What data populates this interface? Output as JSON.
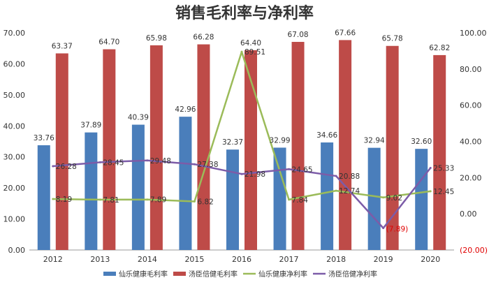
{
  "chart_data": {
    "type": "bar",
    "title": "销售毛利率与净利率",
    "categories": [
      "2012",
      "2013",
      "2014",
      "2015",
      "2016",
      "2017",
      "2018",
      "2019",
      "2020"
    ],
    "left_axis": {
      "min": 0,
      "max": 70,
      "step": 10,
      "ticks": [
        "0.00",
        "10.00",
        "20.00",
        "30.00",
        "40.00",
        "50.00",
        "60.00",
        "70.00"
      ]
    },
    "right_axis": {
      "min": -20,
      "max": 100,
      "step": 20,
      "ticks": [
        "(20.00)",
        "0.00",
        "20.00",
        "40.00",
        "60.00",
        "80.00",
        "100.00"
      ]
    },
    "bar_series": [
      {
        "name": "仙乐健康毛利率",
        "color": "#4a7ebb",
        "axis": "left",
        "values": [
          33.76,
          37.89,
          40.39,
          42.96,
          32.37,
          32.99,
          34.66,
          32.94,
          32.6
        ],
        "labels": [
          "33.76",
          "37.89",
          "40.39",
          "42.96",
          "32.37",
          "32.99",
          "34.66",
          "32.94",
          "32.60"
        ]
      },
      {
        "name": "汤臣倍健毛利率",
        "color": "#be4b48",
        "axis": "left",
        "values": [
          63.37,
          64.7,
          65.98,
          66.28,
          64.4,
          67.08,
          67.66,
          65.78,
          62.82
        ],
        "labels": [
          "63.37",
          "64.70",
          "65.98",
          "66.28",
          "64.40",
          "67.08",
          "67.66",
          "65.78",
          "62.82"
        ]
      }
    ],
    "line_series": [
      {
        "name": "仙乐健康净利率",
        "color": "#9bbb59",
        "axis": "right",
        "values": [
          8.19,
          7.81,
          7.89,
          6.82,
          89.51,
          7.84,
          12.74,
          9.02,
          12.45
        ],
        "labels": [
          "8.19",
          "7.81",
          "7.89",
          "6.82",
          "89.51",
          "7.84",
          "12.74",
          "9.02",
          "12.45"
        ]
      },
      {
        "name": "汤臣倍健净利率",
        "color": "#7c5ca8",
        "axis": "right",
        "values": [
          26.28,
          28.45,
          29.48,
          27.38,
          21.98,
          24.65,
          20.88,
          -7.89,
          25.33
        ],
        "labels": [
          "26.28",
          "28.45",
          "29.48",
          "27.38",
          "21.98",
          "24.65",
          "20.88",
          "(7.89)",
          "25.33"
        ]
      }
    ],
    "grid": false,
    "legend_position": "bottom"
  }
}
